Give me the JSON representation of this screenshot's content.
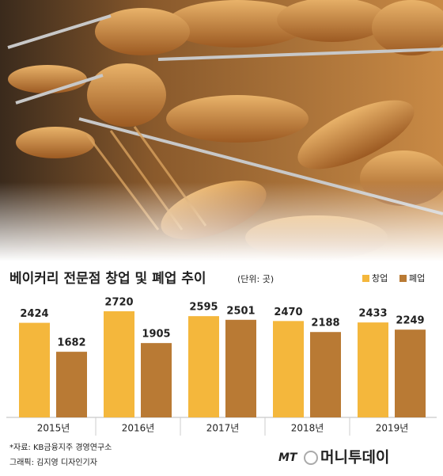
{
  "chart_data": {
    "type": "bar",
    "title": "베이커리 전문점 창업 및 폐업 추이",
    "subtitle": "(단위: 곳)",
    "categories": [
      "2015년",
      "2016년",
      "2017년",
      "2018년",
      "2019년"
    ],
    "series": [
      {
        "name": "창업",
        "color": "#f4b73c",
        "values": [
          2424,
          2720,
          2595,
          2470,
          2433
        ]
      },
      {
        "name": "폐업",
        "color": "#b97a34",
        "values": [
          1682,
          1905,
          2501,
          2188,
          2249
        ]
      }
    ]
  },
  "footer": {
    "source": "*자료: KB금융지주 경영연구소",
    "credit": "그래픽: 김지영 디자인기자",
    "logo_mark": "MT",
    "logo_name": "머니투데이"
  }
}
